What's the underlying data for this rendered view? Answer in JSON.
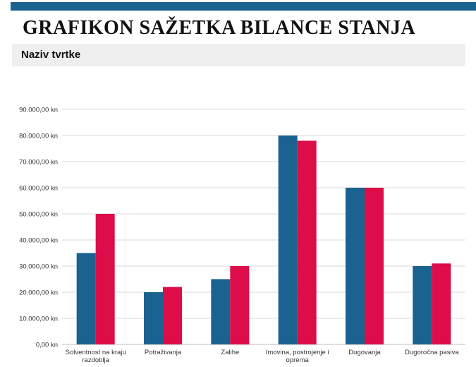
{
  "header": {
    "title": "GRAFIKON SAŽETKA BILANCE STANJA",
    "company": "Naziv tvrtke"
  },
  "colors": {
    "accent_bar": "#1a6290",
    "series_a": "#1a6290",
    "series_b": "#dc0d48"
  },
  "chart_data": {
    "type": "bar",
    "categories": [
      [
        "Solventnost na kraju",
        "razdoblja"
      ],
      [
        "Potraživanja"
      ],
      [
        "Zalihe"
      ],
      [
        "Imovina, postrojenje i",
        "oprema"
      ],
      [
        "Dugovanja"
      ],
      [
        "Dugoročna pasiva"
      ]
    ],
    "series": [
      {
        "values": [
          35000,
          20000,
          25000,
          80000,
          60000,
          30000
        ],
        "color": "#1a6290"
      },
      {
        "values": [
          50000,
          22000,
          30000,
          78000,
          60000,
          31000
        ],
        "color": "#dc0d48"
      }
    ],
    "yticks": [
      "0,00 kn",
      "10.000,00 kn",
      "20.000,00 kn",
      "30.000,00 kn",
      "40.000,00 kn",
      "50.000,00 kn",
      "60.000,00 kn",
      "70.000,00 kn",
      "80.000,00 kn",
      "90.000,00 kn"
    ],
    "ylim": [
      0,
      90000
    ],
    "grid": true,
    "legend": "none"
  }
}
